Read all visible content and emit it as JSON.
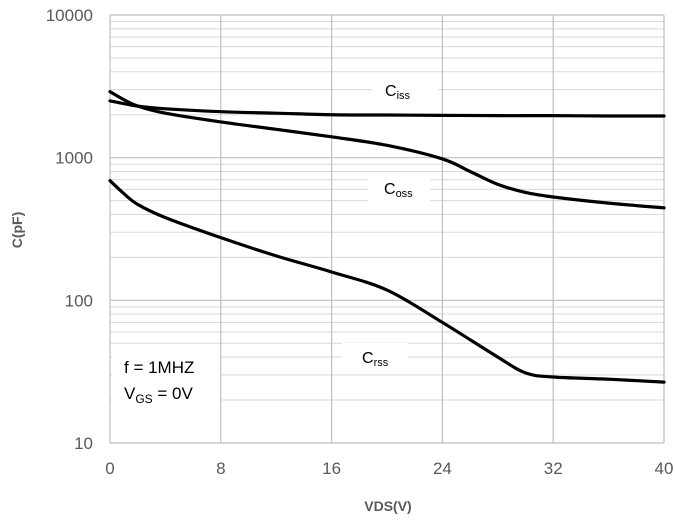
{
  "chart_data": {
    "type": "line",
    "xlabel": "VDS(V)",
    "ylabel": "C(pF)",
    "xlim": [
      0,
      40
    ],
    "ylim": [
      10,
      10000
    ],
    "yscale": "log",
    "x_ticks": [
      "0",
      "8",
      "16",
      "24",
      "32",
      "40"
    ],
    "y_ticks": [
      "10",
      "100",
      "1000",
      "10000"
    ],
    "grid": true,
    "line_color": "#000000",
    "annotations": [
      "f = 1MHZ",
      "VGS = 0V"
    ],
    "series": [
      {
        "name": "Ciss",
        "label_main": "C",
        "label_sub": "iss",
        "x": [
          0,
          2,
          4,
          8,
          12,
          16,
          20,
          24,
          28,
          32,
          36,
          40
        ],
        "values": [
          2500,
          2300,
          2200,
          2100,
          2050,
          2000,
          1990,
          1980,
          1970,
          1970,
          1960,
          1960
        ]
      },
      {
        "name": "Coss",
        "label_main": "C",
        "label_sub": "oss",
        "x": [
          0,
          1,
          2,
          4,
          8,
          12,
          16,
          20,
          24,
          26,
          28,
          30,
          32,
          36,
          40
        ],
        "values": [
          2900,
          2550,
          2300,
          2050,
          1780,
          1580,
          1400,
          1220,
          980,
          800,
          650,
          570,
          530,
          480,
          445
        ]
      },
      {
        "name": "Crss",
        "label_main": "C",
        "label_sub": "rss",
        "x": [
          0,
          1,
          2,
          4,
          8,
          12,
          16,
          20,
          24,
          28,
          30,
          32,
          36,
          40
        ],
        "values": [
          690,
          560,
          470,
          380,
          275,
          205,
          158,
          118,
          70,
          40,
          31,
          29,
          28,
          26.7
        ]
      }
    ]
  }
}
